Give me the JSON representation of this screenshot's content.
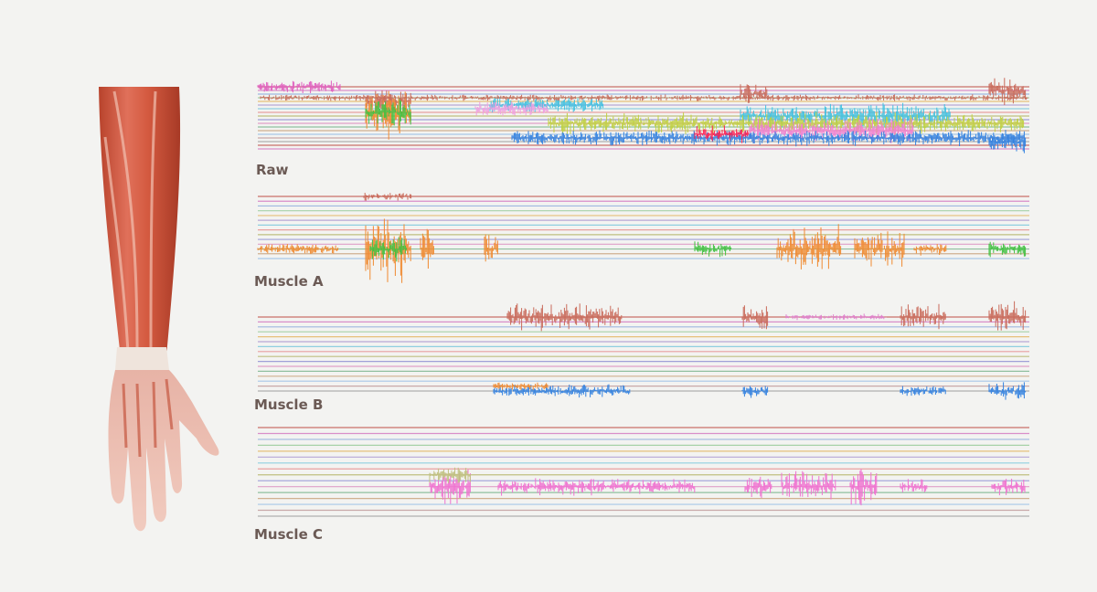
{
  "panels": [
    {
      "label": "Raw"
    },
    {
      "label": "Muscle A"
    },
    {
      "label": "Muscle B"
    },
    {
      "label": "Muscle C"
    }
  ]
}
